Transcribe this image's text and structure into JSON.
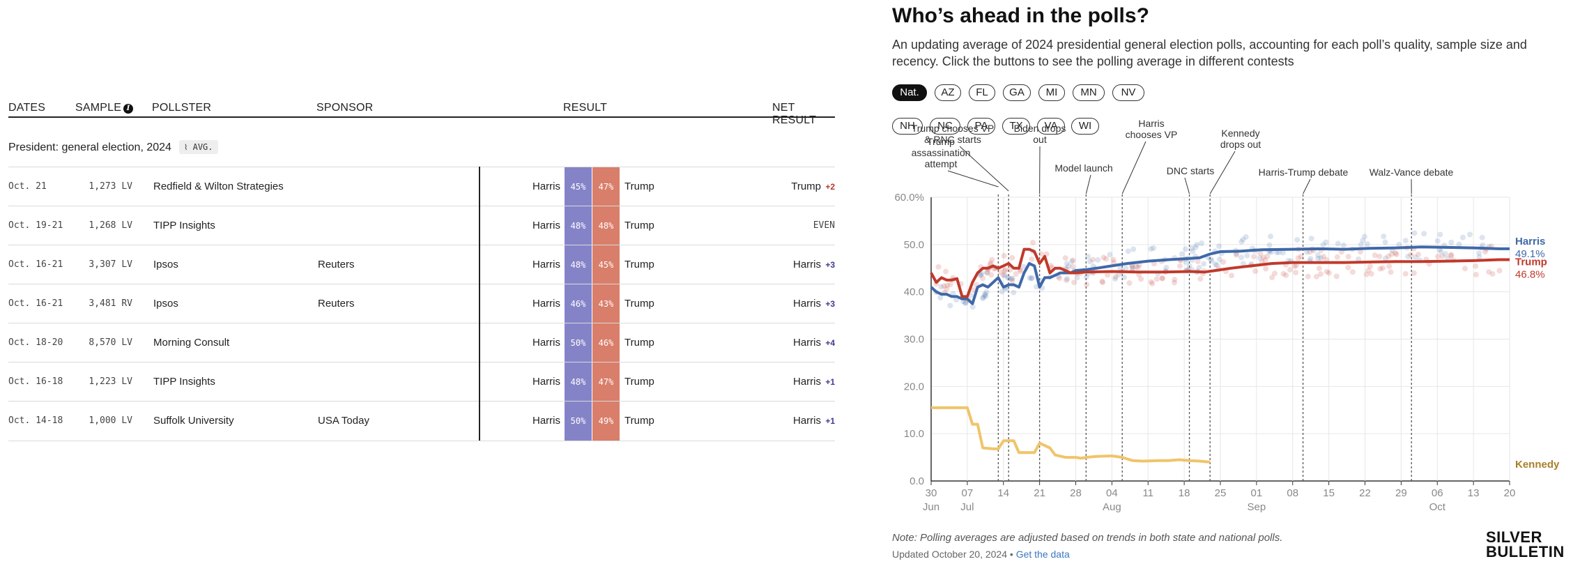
{
  "table": {
    "headers": {
      "dates": "DATES",
      "sample": "SAMPLE",
      "pollster": "POLLSTER",
      "sponsor": "SPONSOR",
      "result": "RESULT",
      "net_result": "NET RESULT"
    },
    "section_title": "President: general election, 2024",
    "avg_badge": "AVG.",
    "rows": [
      {
        "date": "Oct. 21",
        "sample": "1,273 LV",
        "pollster": "Redfield & Wilton Strategies",
        "sponsor": "",
        "harris_label": "Harris",
        "harris": "45%",
        "trump": "47%",
        "trump_label": "Trump",
        "net_leader": "Trump",
        "net_margin": "+2",
        "net_color": "#b33a2e"
      },
      {
        "date": "Oct. 19-21",
        "sample": "1,268 LV",
        "pollster": "TIPP Insights",
        "sponsor": "",
        "harris_label": "Harris",
        "harris": "48%",
        "trump": "48%",
        "trump_label": "Trump",
        "net_leader": "",
        "net_margin": "EVEN",
        "net_color": "#444444"
      },
      {
        "date": "Oct. 16-21",
        "sample": "3,307 LV",
        "pollster": "Ipsos",
        "sponsor": "Reuters",
        "harris_label": "Harris",
        "harris": "48%",
        "trump": "45%",
        "trump_label": "Trump",
        "net_leader": "Harris",
        "net_margin": "+3",
        "net_color": "#3b3b8f"
      },
      {
        "date": "Oct. 16-21",
        "sample": "3,481 RV",
        "pollster": "Ipsos",
        "sponsor": "Reuters",
        "harris_label": "Harris",
        "harris": "46%",
        "trump": "43%",
        "trump_label": "Trump",
        "net_leader": "Harris",
        "net_margin": "+3",
        "net_color": "#3b3b8f"
      },
      {
        "date": "Oct. 18-20",
        "sample": "8,570 LV",
        "pollster": "Morning Consult",
        "sponsor": "",
        "harris_label": "Harris",
        "harris": "50%",
        "trump": "46%",
        "trump_label": "Trump",
        "net_leader": "Harris",
        "net_margin": "+4",
        "net_color": "#3b3b8f"
      },
      {
        "date": "Oct. 16-18",
        "sample": "1,223 LV",
        "pollster": "TIPP Insights",
        "sponsor": "",
        "harris_label": "Harris",
        "harris": "48%",
        "trump": "47%",
        "trump_label": "Trump",
        "net_leader": "Harris",
        "net_margin": "+1",
        "net_color": "#3b3b8f"
      },
      {
        "date": "Oct. 14-18",
        "sample": "1,000 LV",
        "pollster": "Suffolk University",
        "sponsor": "USA Today",
        "harris_label": "Harris",
        "harris": "50%",
        "trump": "49%",
        "trump_label": "Trump",
        "net_leader": "Harris",
        "net_margin": "+1",
        "net_color": "#3b3b8f"
      }
    ]
  },
  "panel": {
    "title": "Who’s ahead in the polls?",
    "subtitle": "An updating average of 2024 presidential general election polls, accounting for each poll’s quality, sample size and recency. Click the buttons to see the polling average in different contests",
    "buttons_row1": [
      "Nat.",
      "AZ",
      "FL",
      "GA",
      "MI",
      "MN",
      "NV"
    ],
    "buttons_row2": [
      "NH",
      "NC",
      "PA",
      "TX",
      "VA",
      "WI"
    ],
    "active_button": "Nat.",
    "note": "Note: Polling averages are adjusted based on trends in both state and national polls.",
    "updated_text": "Updated October 20, 2024 •",
    "data_link": "Get the data",
    "brand_line1": "SILVER",
    "brand_line2": "BULLETIN"
  },
  "chart_data": {
    "type": "line",
    "title": "Who’s ahead in the polls?",
    "ylim": [
      0,
      60
    ],
    "yticks": [
      0,
      10,
      20,
      30,
      40,
      50,
      60
    ],
    "ytick_labels": [
      "0.0",
      "10.0",
      "20.0",
      "30.0",
      "40.0",
      "50.0",
      "60.0%"
    ],
    "x_unit": "days since Jun 30, 2024",
    "xlim": [
      0,
      112
    ],
    "xticks": [
      {
        "day": 0,
        "label": "30",
        "sub": "Jun"
      },
      {
        "day": 7,
        "label": "07",
        "sub": "Jul"
      },
      {
        "day": 14,
        "label": "14",
        "sub": ""
      },
      {
        "day": 21,
        "label": "21",
        "sub": ""
      },
      {
        "day": 28,
        "label": "28",
        "sub": ""
      },
      {
        "day": 35,
        "label": "04",
        "sub": "Aug"
      },
      {
        "day": 42,
        "label": "11",
        "sub": ""
      },
      {
        "day": 49,
        "label": "18",
        "sub": ""
      },
      {
        "day": 56,
        "label": "25",
        "sub": ""
      },
      {
        "day": 63,
        "label": "01",
        "sub": "Sep"
      },
      {
        "day": 70,
        "label": "08",
        "sub": ""
      },
      {
        "day": 77,
        "label": "15",
        "sub": ""
      },
      {
        "day": 84,
        "label": "22",
        "sub": ""
      },
      {
        "day": 91,
        "label": "29",
        "sub": ""
      },
      {
        "day": 98,
        "label": "06",
        "sub": "Oct"
      },
      {
        "day": 105,
        "label": "13",
        "sub": ""
      },
      {
        "day": 112,
        "label": "20",
        "sub": ""
      }
    ],
    "events": [
      {
        "day": 13,
        "lines": [
          "Trump",
          "assassination",
          "attempt"
        ]
      },
      {
        "day": 15,
        "lines": [
          "Trump chooses VP",
          "& RNC starts"
        ]
      },
      {
        "day": 21,
        "lines": [
          "Biden drops",
          "out"
        ]
      },
      {
        "day": 30,
        "lines": [
          "Model launch"
        ]
      },
      {
        "day": 37,
        "lines": [
          "Harris",
          "chooses VP"
        ]
      },
      {
        "day": 50,
        "lines": [
          "DNC starts"
        ]
      },
      {
        "day": 54,
        "lines": [
          "Kennedy",
          "drops out"
        ]
      },
      {
        "day": 72,
        "lines": [
          "Harris-Trump debate"
        ]
      },
      {
        "day": 93,
        "lines": [
          "Walz-Vance debate"
        ]
      }
    ],
    "series": [
      {
        "name": "Harris",
        "label": "Harris",
        "value_label": "49.1%",
        "color": "#3f68a8",
        "points": [
          [
            0,
            41
          ],
          [
            1,
            40
          ],
          [
            2,
            39.5
          ],
          [
            3,
            39.5
          ],
          [
            4,
            39
          ],
          [
            5,
            39
          ],
          [
            6,
            38.5
          ],
          [
            7,
            38.5
          ],
          [
            8,
            37.5
          ],
          [
            9,
            41
          ],
          [
            10,
            41.5
          ],
          [
            11,
            41
          ],
          [
            12,
            42
          ],
          [
            13,
            43
          ],
          [
            14,
            41
          ],
          [
            15,
            41.5
          ],
          [
            16,
            41.5
          ],
          [
            17,
            41
          ],
          [
            18,
            44
          ],
          [
            19,
            46
          ],
          [
            20,
            45.5
          ],
          [
            21,
            41
          ],
          [
            22,
            43
          ],
          [
            23,
            43
          ],
          [
            24,
            43.5
          ],
          [
            25,
            44
          ],
          [
            26,
            44
          ],
          [
            27,
            44
          ],
          [
            28,
            44.5
          ],
          [
            30,
            44.7
          ],
          [
            32,
            45
          ],
          [
            35,
            45.5
          ],
          [
            38,
            46
          ],
          [
            42,
            46.5
          ],
          [
            46,
            46.8
          ],
          [
            49,
            47
          ],
          [
            52,
            47.2
          ],
          [
            54,
            48
          ],
          [
            56,
            48.5
          ],
          [
            60,
            48.6
          ],
          [
            64,
            48.9
          ],
          [
            70,
            49
          ],
          [
            75,
            49.1
          ],
          [
            80,
            49
          ],
          [
            85,
            49.2
          ],
          [
            90,
            49.3
          ],
          [
            95,
            49.5
          ],
          [
            100,
            49.4
          ],
          [
            105,
            49.3
          ],
          [
            110,
            49.1
          ],
          [
            112,
            49.1
          ]
        ]
      },
      {
        "name": "Trump",
        "label": "Trump",
        "value_label": "46.8%",
        "color": "#c0392b",
        "points": [
          [
            0,
            44
          ],
          [
            1,
            42
          ],
          [
            2,
            43
          ],
          [
            3,
            42.5
          ],
          [
            4,
            42.5
          ],
          [
            5,
            42.8
          ],
          [
            6,
            39
          ],
          [
            7,
            39
          ],
          [
            8,
            42
          ],
          [
            9,
            44
          ],
          [
            10,
            45
          ],
          [
            11,
            45
          ],
          [
            12,
            45.5
          ],
          [
            13,
            45
          ],
          [
            14,
            45.5
          ],
          [
            15,
            46
          ],
          [
            16,
            45
          ],
          [
            17,
            45
          ],
          [
            18,
            49
          ],
          [
            19,
            49
          ],
          [
            20,
            48.5
          ],
          [
            21,
            46
          ],
          [
            22,
            47.5
          ],
          [
            23,
            44
          ],
          [
            24,
            45
          ],
          [
            25,
            45
          ],
          [
            26,
            44.5
          ],
          [
            27,
            44
          ],
          [
            28,
            44
          ],
          [
            30,
            44.2
          ],
          [
            35,
            44.3
          ],
          [
            40,
            44.2
          ],
          [
            45,
            44.2
          ],
          [
            50,
            44.3
          ],
          [
            53,
            44.2
          ],
          [
            55,
            44.5
          ],
          [
            58,
            45
          ],
          [
            62,
            45.5
          ],
          [
            66,
            46
          ],
          [
            70,
            46.2
          ],
          [
            75,
            46.2
          ],
          [
            80,
            46.2
          ],
          [
            85,
            46.3
          ],
          [
            90,
            46.4
          ],
          [
            95,
            46.4
          ],
          [
            100,
            46.5
          ],
          [
            105,
            46.6
          ],
          [
            110,
            46.8
          ],
          [
            112,
            46.8
          ]
        ]
      },
      {
        "name": "Kennedy",
        "label": "Kennedy",
        "value_label": "",
        "color": "#f0c46a",
        "points": [
          [
            0,
            15.5
          ],
          [
            7,
            15.5
          ],
          [
            8,
            12
          ],
          [
            9,
            12
          ],
          [
            10,
            7
          ],
          [
            12,
            6.8
          ],
          [
            13,
            6.8
          ],
          [
            14,
            8.5
          ],
          [
            16,
            8.5
          ],
          [
            17,
            6
          ],
          [
            20,
            6
          ],
          [
            21,
            8
          ],
          [
            23,
            7
          ],
          [
            24,
            5.5
          ],
          [
            26,
            5
          ],
          [
            28,
            5
          ],
          [
            29,
            4.8
          ],
          [
            30,
            5
          ],
          [
            32,
            5.2
          ],
          [
            35,
            5.3
          ],
          [
            37,
            5
          ],
          [
            39,
            4.3
          ],
          [
            41,
            4.2
          ],
          [
            44,
            4.3
          ],
          [
            46,
            4.3
          ],
          [
            48,
            4.5
          ],
          [
            50,
            4.3
          ],
          [
            52,
            4.2
          ],
          [
            54,
            4.0
          ]
        ]
      }
    ]
  }
}
